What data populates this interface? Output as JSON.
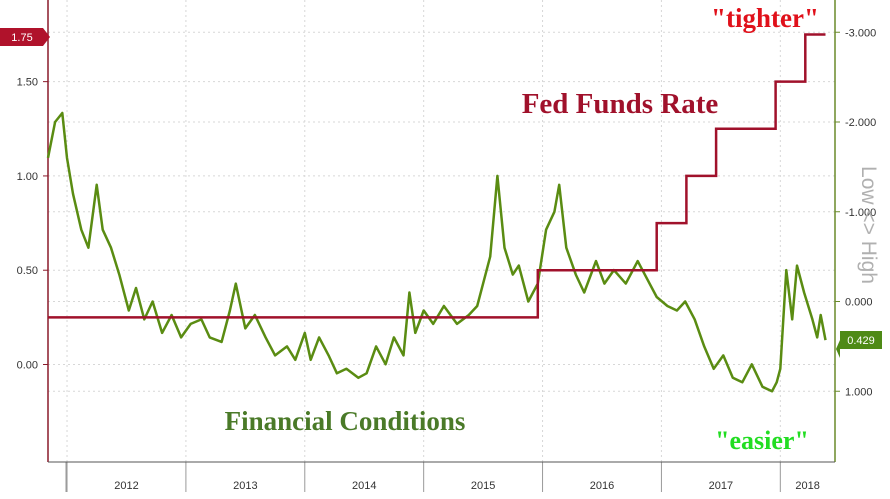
{
  "chart_data": {
    "type": "line",
    "title": "",
    "x_ticks": [
      "2012",
      "2013",
      "2014",
      "2015",
      "2016",
      "2017",
      "2018"
    ],
    "y_left": {
      "ticks": [
        "0.00",
        "0.50",
        "1.00",
        "1.50"
      ],
      "range": [
        -0.5,
        1.75
      ],
      "current_label": "1.75"
    },
    "y_right": {
      "label": "Low <> High",
      "ticks": [
        "-3.000",
        "-2.000",
        "-1.000",
        "0.000",
        "1.000"
      ],
      "range": [
        -3.25,
        1.75
      ],
      "inverted": true,
      "current_label": "0.429"
    },
    "grid": true,
    "annotations": {
      "tighter": "\"tighter\"",
      "easier": "\"easier\"",
      "fed_funds": "Fed Funds Rate",
      "financial_conditions": "Financial Conditions"
    },
    "colors": {
      "fed": "#a0112b",
      "fci": "#5a8c12",
      "tighter": "#e0101a",
      "easier": "#22dd22",
      "fci_text": "#4a7a28"
    },
    "fed_funds_rate": {
      "name": "Fed Funds Rate",
      "axis": "left",
      "points": [
        [
          "2011.84",
          0.25
        ],
        [
          "2015.96",
          0.25
        ],
        [
          "2015.96",
          0.5
        ],
        [
          "2016.96",
          0.5
        ],
        [
          "2016.96",
          0.75
        ],
        [
          "2017.21",
          0.75
        ],
        [
          "2017.21",
          1.0
        ],
        [
          "2017.46",
          1.0
        ],
        [
          "2017.46",
          1.25
        ],
        [
          "2017.96",
          1.25
        ],
        [
          "2017.96",
          1.5
        ],
        [
          "2018.21",
          1.5
        ],
        [
          "2018.21",
          1.75
        ],
        [
          "2018.38",
          1.75
        ]
      ]
    },
    "financial_conditions": {
      "name": "Financial Conditions",
      "axis": "right",
      "current": 0.429,
      "points": [
        [
          "2011.84",
          -1.6
        ],
        [
          "2011.90",
          -2.0
        ],
        [
          "2011.96",
          -2.1
        ],
        [
          "2012.00",
          -1.6
        ],
        [
          "2012.05",
          -1.2
        ],
        [
          "2012.12",
          -0.8
        ],
        [
          "2012.18",
          -0.6
        ],
        [
          "2012.25",
          -1.3
        ],
        [
          "2012.30",
          -0.8
        ],
        [
          "2012.37",
          -0.6
        ],
        [
          "2012.44",
          -0.3
        ],
        [
          "2012.52",
          0.1
        ],
        [
          "2012.58",
          -0.15
        ],
        [
          "2012.65",
          0.2
        ],
        [
          "2012.72",
          0.0
        ],
        [
          "2012.80",
          0.35
        ],
        [
          "2012.88",
          0.15
        ],
        [
          "2012.96",
          0.4
        ],
        [
          "2013.04",
          0.25
        ],
        [
          "2013.13",
          0.2
        ],
        [
          "2013.20",
          0.4
        ],
        [
          "2013.30",
          0.45
        ],
        [
          "2013.37",
          0.1
        ],
        [
          "2013.42",
          -0.2
        ],
        [
          "2013.50",
          0.3
        ],
        [
          "2013.58",
          0.15
        ],
        [
          "2013.67",
          0.4
        ],
        [
          "2013.75",
          0.6
        ],
        [
          "2013.85",
          0.5
        ],
        [
          "2013.92",
          0.65
        ],
        [
          "2014.00",
          0.35
        ],
        [
          "2014.05",
          0.65
        ],
        [
          "2014.12",
          0.4
        ],
        [
          "2014.20",
          0.6
        ],
        [
          "2014.27",
          0.8
        ],
        [
          "2014.35",
          0.75
        ],
        [
          "2014.45",
          0.85
        ],
        [
          "2014.52",
          0.8
        ],
        [
          "2014.60",
          0.5
        ],
        [
          "2014.68",
          0.7
        ],
        [
          "2014.75",
          0.4
        ],
        [
          "2014.83",
          0.6
        ],
        [
          "2014.88",
          -0.1
        ],
        [
          "2014.93",
          0.35
        ],
        [
          "2015.00",
          0.1
        ],
        [
          "2015.08",
          0.25
        ],
        [
          "2015.17",
          0.05
        ],
        [
          "2015.28",
          0.25
        ],
        [
          "2015.38",
          0.15
        ],
        [
          "2015.45",
          0.05
        ],
        [
          "2015.50",
          -0.2
        ],
        [
          "2015.56",
          -0.5
        ],
        [
          "2015.62",
          -1.4
        ],
        [
          "2015.68",
          -0.6
        ],
        [
          "2015.75",
          -0.3
        ],
        [
          "2015.80",
          -0.4
        ],
        [
          "2015.88",
          0.0
        ],
        [
          "2015.96",
          -0.2
        ],
        [
          "2016.03",
          -0.8
        ],
        [
          "2016.10",
          -1.0
        ],
        [
          "2016.14",
          -1.3
        ],
        [
          "2016.20",
          -0.6
        ],
        [
          "2016.28",
          -0.3
        ],
        [
          "2016.35",
          -0.1
        ],
        [
          "2016.45",
          -0.45
        ],
        [
          "2016.52",
          -0.2
        ],
        [
          "2016.60",
          -0.35
        ],
        [
          "2016.70",
          -0.2
        ],
        [
          "2016.80",
          -0.45
        ],
        [
          "2016.88",
          -0.25
        ],
        [
          "2016.96",
          -0.05
        ],
        [
          "2017.05",
          0.05
        ],
        [
          "2017.13",
          0.1
        ],
        [
          "2017.20",
          0.0
        ],
        [
          "2017.28",
          0.2
        ],
        [
          "2017.36",
          0.5
        ],
        [
          "2017.44",
          0.75
        ],
        [
          "2017.52",
          0.6
        ],
        [
          "2017.60",
          0.85
        ],
        [
          "2017.68",
          0.9
        ],
        [
          "2017.76",
          0.7
        ],
        [
          "2017.85",
          0.95
        ],
        [
          "2017.93",
          1.0
        ],
        [
          "2017.97",
          0.9
        ],
        [
          "2018.00",
          0.75
        ],
        [
          "2018.05",
          -0.35
        ],
        [
          "2018.10",
          0.2
        ],
        [
          "2018.14",
          -0.4
        ],
        [
          "2018.20",
          -0.1
        ],
        [
          "2018.27",
          0.2
        ],
        [
          "2018.31",
          0.4
        ],
        [
          "2018.34",
          0.15
        ],
        [
          "2018.38",
          0.43
        ]
      ]
    }
  }
}
